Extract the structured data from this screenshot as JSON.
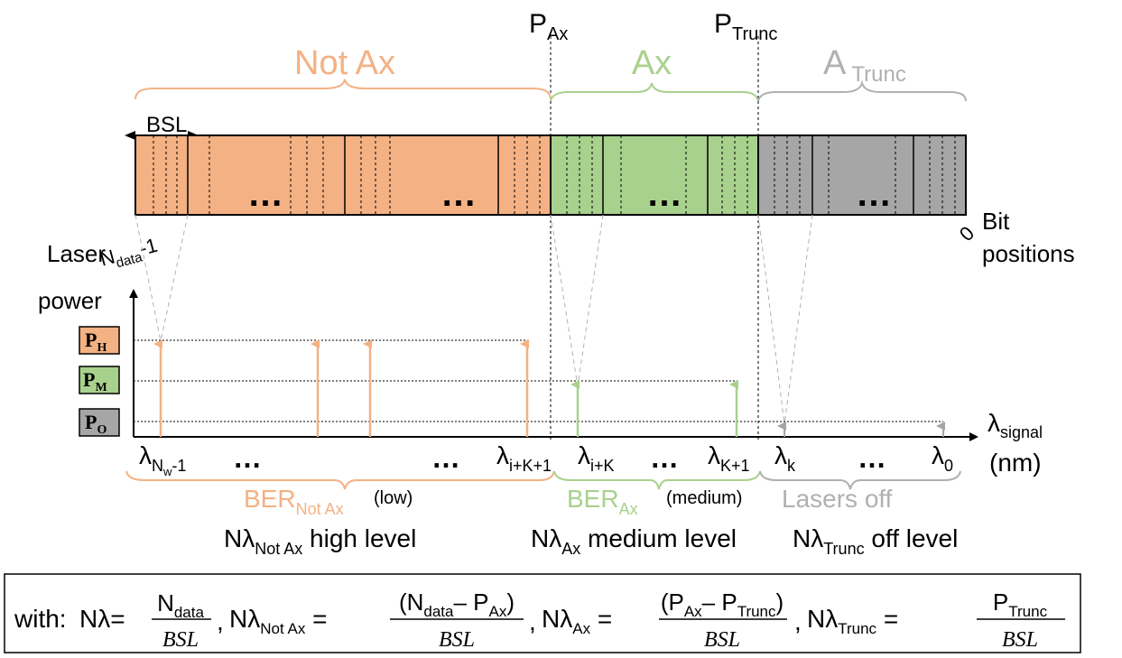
{
  "colors": {
    "not_ax": "#f4b183",
    "not_ax_stroke": "#e8956a",
    "ax": "#a9d18e",
    "ax_stroke": "#8cc06f",
    "trunc": "#a6a6a6",
    "trunc_light": "#b0b0b0"
  },
  "markers": {
    "p_ax": "P",
    "p_ax_sub": "Ax",
    "p_trunc": "P",
    "p_trunc_sub": "Trunc"
  },
  "regions": {
    "not_ax": "Not Ax",
    "ax": "Ax",
    "trunc": "A",
    "trunc_sub": "Trunc"
  },
  "bsl": "BSL",
  "ellipsis": "…",
  "bit_positions": {
    "left": "N",
    "left_sub": "data",
    "left_suffix": "-1",
    "right": "0",
    "label_line1": "Bit",
    "label_line2": "positions"
  },
  "axis": {
    "y_line1": "Laser",
    "y_line2": "power",
    "x_label": "λ",
    "x_label_sub": "signal",
    "x_unit": "(nm)"
  },
  "power_levels": {
    "high": "P",
    "high_sub": "H",
    "medium": "P",
    "medium_sub": "M",
    "off": "P",
    "off_sub": "O"
  },
  "wavelengths": {
    "w1": "λ",
    "w1_sub": "N",
    "w1_subsub": "w",
    "w1_suffix": "-1",
    "w2": "λ",
    "w2_sub": "i+K+1",
    "w3": "λ",
    "w3_sub": "i+K",
    "w4": "λ",
    "w4_sub": "K+1",
    "w5": "λ",
    "w5_sub": "k",
    "w6": "λ",
    "w6_sub": "0"
  },
  "ber": {
    "not_ax": "BER",
    "not_ax_sub": "Not Ax",
    "not_ax_note": "(low)",
    "ax": "BER",
    "ax_sub": "Ax",
    "ax_note": "(medium)",
    "trunc": "Lasers off"
  },
  "levels": {
    "not_ax_pre": "Nλ",
    "not_ax_sub": "Not Ax",
    "not_ax_post": " high level",
    "ax_pre": "Nλ",
    "ax_sub": "Ax",
    "ax_post": " medium level",
    "trunc_pre": "Nλ",
    "trunc_sub": "Trunc",
    "trunc_post": " off level"
  },
  "formula": {
    "with": "with:",
    "nl": "Nλ=",
    "ndata": "N",
    "ndata_sub": "data",
    "bsl": "BSL",
    "comma": ",",
    "nl_notax": "Nλ",
    "nl_notax_sub": "Not Ax",
    "eq": " =",
    "num2_a": "(N",
    "num2_a_sub": "data",
    "num2_b": "– P",
    "num2_b_sub": "Ax",
    "num2_c": ")",
    "nl_ax": "Nλ",
    "nl_ax_sub": "Ax",
    "num3_a": "(P",
    "num3_a_sub": "Ax",
    "num3_b": "– P",
    "num3_b_sub": "Trunc",
    "num3_c": ")",
    "nl_trunc": "Nλ",
    "nl_trunc_sub": "Trunc",
    "num4": "P",
    "num4_sub": "Trunc"
  }
}
